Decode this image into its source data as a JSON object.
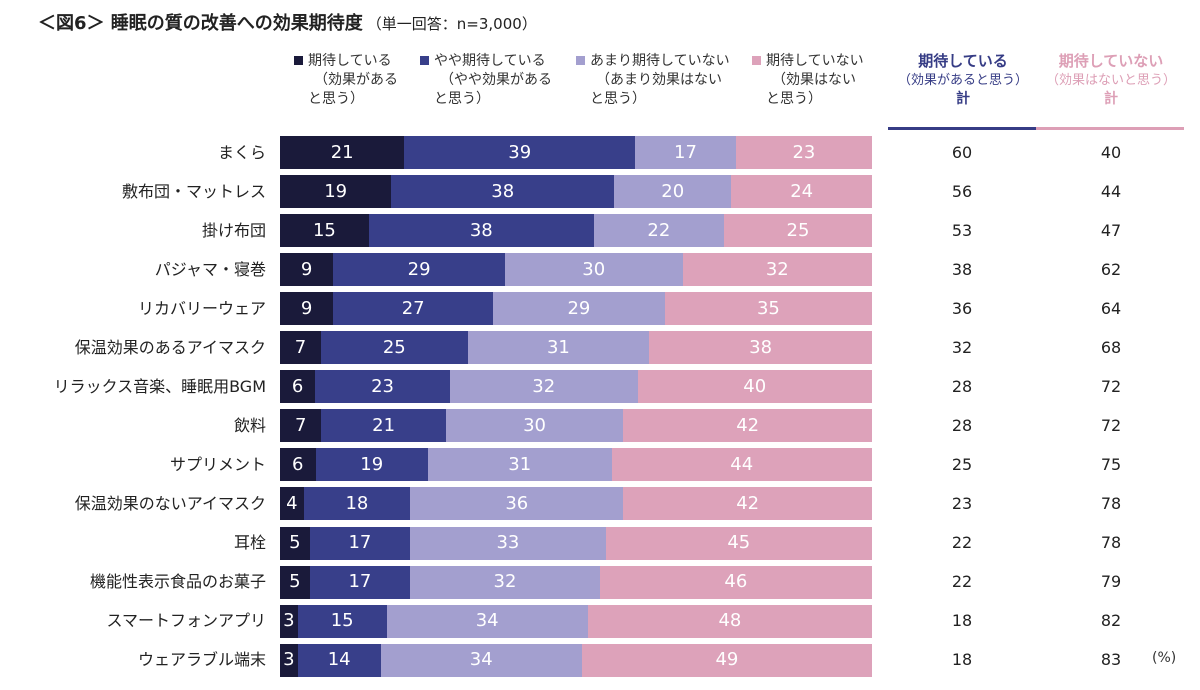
{
  "title": {
    "main": "＜図6＞ 睡眠の質の改善への効果期待度",
    "sub": "（単一回答：n=3,000）"
  },
  "chart_data": {
    "type": "bar",
    "orientation": "horizontal-stacked-100",
    "unit": "(%)",
    "series": [
      {
        "name": "期待している",
        "lines": [
          "期待している",
          "（効果がある",
          "と思う）"
        ],
        "color": "#1a1a3a"
      },
      {
        "name": "やや期待している",
        "lines": [
          "やや期待している",
          "（やや効果がある",
          "と思う）"
        ],
        "color": "#383f8a"
      },
      {
        "name": "あまり期待していない",
        "lines": [
          "あまり期待していない",
          "（あまり効果はない",
          "と思う）"
        ],
        "color": "#a39fcf"
      },
      {
        "name": "期待していない",
        "lines": [
          "期待していない",
          "（効果はない",
          "と思う）"
        ],
        "color": "#dda2ba"
      }
    ],
    "categories": [
      "まくら",
      "敷布団・マットレス",
      "掛け布団",
      "パジャマ・寝巻",
      "リカバリーウェア",
      "保温効果のあるアイマスク",
      "リラックス音楽、睡眠用BGM",
      "飲料",
      "サプリメント",
      "保温効果のないアイマスク",
      "耳栓",
      "機能性表示食品のお菓子",
      "スマートフォンアプリ",
      "ウェアラブル端末"
    ],
    "values": [
      [
        21,
        39,
        17,
        23
      ],
      [
        19,
        38,
        20,
        24
      ],
      [
        15,
        38,
        22,
        25
      ],
      [
        9,
        29,
        30,
        32
      ],
      [
        9,
        27,
        29,
        35
      ],
      [
        7,
        25,
        31,
        38
      ],
      [
        6,
        23,
        32,
        40
      ],
      [
        7,
        21,
        30,
        42
      ],
      [
        6,
        19,
        31,
        44
      ],
      [
        4,
        18,
        36,
        42
      ],
      [
        5,
        17,
        33,
        45
      ],
      [
        5,
        17,
        32,
        46
      ],
      [
        3,
        15,
        34,
        48
      ],
      [
        3,
        14,
        34,
        49
      ]
    ],
    "totals": {
      "expecting": {
        "label": "期待している",
        "note": "（効果があると思う）",
        "total_label": "計",
        "color": "#363c85",
        "values": [
          60,
          56,
          53,
          38,
          36,
          32,
          28,
          28,
          25,
          23,
          22,
          22,
          18,
          18
        ]
      },
      "not_expecting": {
        "label": "期待していない",
        "note": "（効果はないと思う）",
        "total_label": "計",
        "color": "#dd9fb6",
        "values": [
          40,
          44,
          47,
          62,
          64,
          68,
          72,
          72,
          75,
          78,
          78,
          79,
          82,
          83
        ]
      }
    }
  }
}
